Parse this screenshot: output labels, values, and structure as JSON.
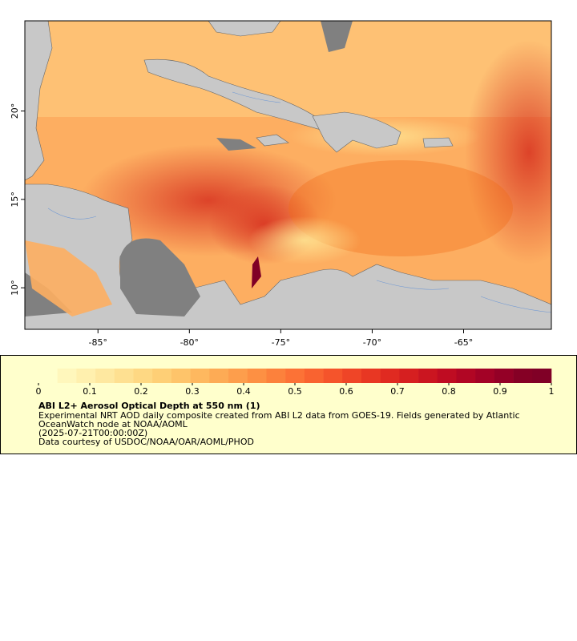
{
  "map": {
    "xlim": [
      -89,
      -60.2
    ],
    "ylim": [
      7.65,
      25.1
    ],
    "xticks": [
      {
        "value": -85,
        "label": "-85°"
      },
      {
        "value": -80,
        "label": "-80°"
      },
      {
        "value": -75,
        "label": "-75°"
      },
      {
        "value": -70,
        "label": "-70°"
      },
      {
        "value": -65,
        "label": "-65°"
      }
    ],
    "yticks": [
      {
        "value": 10,
        "label": "10°"
      },
      {
        "value": 15,
        "label": "15°"
      },
      {
        "value": 20,
        "label": "20°"
      }
    ]
  },
  "colorbar": {
    "lim": [
      0,
      1
    ],
    "ticks": [
      0,
      0.1,
      0.2,
      0.3,
      0.4,
      0.5,
      0.6,
      0.7,
      0.8,
      0.9,
      1
    ],
    "colors": [
      "#ffffcc",
      "#fff7bc",
      "#fff0ae",
      "#fee8a0",
      "#fee091",
      "#fed883",
      "#fecf76",
      "#fec46a",
      "#feb85f",
      "#fdab55",
      "#fd9e4c",
      "#fd9043",
      "#fc813c",
      "#fc7236",
      "#f96330",
      "#f5542b",
      "#ef4527",
      "#e83723",
      "#e02a21",
      "#d61f20",
      "#cb1520",
      "#bf0c22",
      "#b10624",
      "#a30226",
      "#940026",
      "#850025",
      "#800026"
    ]
  },
  "legend": {
    "title": "ABI L2+ Aerosol Optical Depth at 550 nm (1)",
    "lines": [
      "Experimental NRT AOD daily composite created from ABI L2 data from GOES-19. Fields generated by Atlantic",
      "OceanWatch node at NOAA/AOML",
      "(2025-07-21T00:00:00Z)",
      "Data courtesy of USDOC/NOAA/OAR/AOML/PHOD"
    ]
  }
}
